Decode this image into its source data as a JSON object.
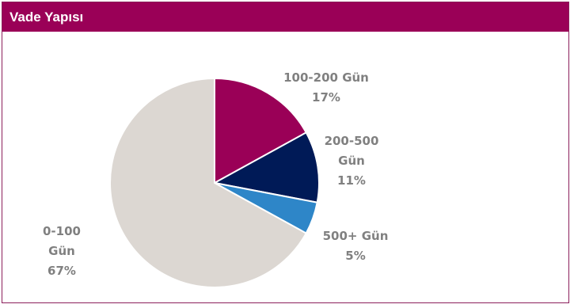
{
  "header": {
    "title": "Vade Yapısı"
  },
  "colors": {
    "header_bg": "#9a0057",
    "border": "#8c1f5c"
  },
  "chart_data": {
    "type": "pie",
    "title": "Vade Yapısı",
    "start_angle_deg": 0,
    "direction": "clockwise",
    "slices": [
      {
        "label_lines": [
          "100-200 Gün",
          "17%"
        ],
        "value": 17,
        "color": "#9a0057"
      },
      {
        "label_lines": [
          "200-500",
          "Gün",
          "11%"
        ],
        "value": 11,
        "color": "#001a57"
      },
      {
        "label_lines": [
          "500+ Gün",
          "5%"
        ],
        "value": 5,
        "color": "#2e86c8"
      },
      {
        "label_lines": [
          "0-100",
          "Gün",
          "67%"
        ],
        "value": 67,
        "color": "#dcd7d2"
      }
    ]
  }
}
